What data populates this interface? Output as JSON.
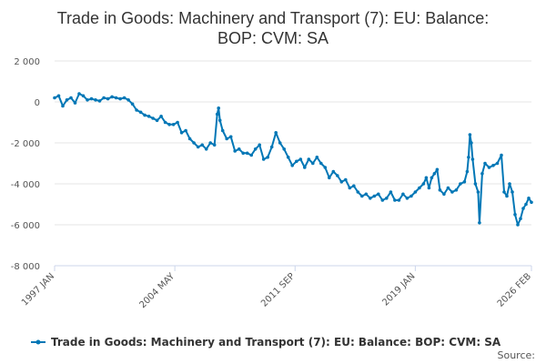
{
  "chart_data": {
    "type": "line",
    "title_lines": [
      "Trade in Goods: Machinery and Transport (7): EU: Balance:",
      "BOP: CVM: SA"
    ],
    "x_tick_labels": [
      "1997 JAN",
      "2004 MAY",
      "2011 SEP",
      "2019 JAN",
      "2026 FEB"
    ],
    "x_tick_positions": [
      0,
      88,
      176,
      264,
      349
    ],
    "y_ticks": [
      2000,
      0,
      -2000,
      -4000,
      -6000,
      -8000
    ],
    "y_tick_labels": [
      "2 000",
      "0",
      "-2 000",
      "-4 000",
      "-6 000",
      "-8 000"
    ],
    "ylim": [
      -8000,
      2000
    ],
    "xlim": [
      0,
      349
    ],
    "x_unit": "months since 1997 JAN",
    "grid": true,
    "legend": {
      "position": "bottom",
      "label": "Trade in Goods: Machinery and Transport (7): EU: Balance: BOP: CVM: SA"
    },
    "series_color": "#0077b6",
    "credit": "Source:",
    "series": [
      {
        "name": "Trade in Goods: Machinery and Transport (7): EU: Balance: BOP: CVM: SA",
        "points": [
          [
            0,
            200
          ],
          [
            3,
            300
          ],
          [
            6,
            -200
          ],
          [
            9,
            100
          ],
          [
            12,
            200
          ],
          [
            15,
            -50
          ],
          [
            18,
            400
          ],
          [
            21,
            300
          ],
          [
            24,
            100
          ],
          [
            27,
            150
          ],
          [
            30,
            100
          ],
          [
            33,
            50
          ],
          [
            36,
            200
          ],
          [
            39,
            150
          ],
          [
            42,
            250
          ],
          [
            45,
            200
          ],
          [
            48,
            150
          ],
          [
            51,
            200
          ],
          [
            54,
            100
          ],
          [
            57,
            -100
          ],
          [
            60,
            -400
          ],
          [
            63,
            -500
          ],
          [
            66,
            -650
          ],
          [
            69,
            -700
          ],
          [
            72,
            -800
          ],
          [
            75,
            -900
          ],
          [
            78,
            -700
          ],
          [
            81,
            -1000
          ],
          [
            84,
            -1100
          ],
          [
            87,
            -1100
          ],
          [
            90,
            -1000
          ],
          [
            93,
            -1500
          ],
          [
            96,
            -1400
          ],
          [
            99,
            -1800
          ],
          [
            102,
            -2000
          ],
          [
            105,
            -2200
          ],
          [
            108,
            -2100
          ],
          [
            111,
            -2300
          ],
          [
            114,
            -2000
          ],
          [
            117,
            -2100
          ],
          [
            119,
            -600
          ],
          [
            120,
            -300
          ],
          [
            121,
            -900
          ],
          [
            123,
            -1400
          ],
          [
            126,
            -1800
          ],
          [
            129,
            -1700
          ],
          [
            132,
            -2400
          ],
          [
            135,
            -2300
          ],
          [
            138,
            -2500
          ],
          [
            141,
            -2500
          ],
          [
            144,
            -2600
          ],
          [
            147,
            -2300
          ],
          [
            150,
            -2100
          ],
          [
            153,
            -2800
          ],
          [
            156,
            -2700
          ],
          [
            159,
            -2200
          ],
          [
            162,
            -1500
          ],
          [
            165,
            -2000
          ],
          [
            168,
            -2300
          ],
          [
            171,
            -2700
          ],
          [
            174,
            -3100
          ],
          [
            177,
            -2900
          ],
          [
            180,
            -2800
          ],
          [
            183,
            -3200
          ],
          [
            186,
            -2800
          ],
          [
            189,
            -3000
          ],
          [
            192,
            -2700
          ],
          [
            195,
            -3000
          ],
          [
            198,
            -3200
          ],
          [
            201,
            -3700
          ],
          [
            204,
            -3400
          ],
          [
            207,
            -3600
          ],
          [
            210,
            -3900
          ],
          [
            213,
            -3800
          ],
          [
            216,
            -4200
          ],
          [
            219,
            -4100
          ],
          [
            222,
            -4400
          ],
          [
            225,
            -4600
          ],
          [
            228,
            -4500
          ],
          [
            231,
            -4700
          ],
          [
            234,
            -4600
          ],
          [
            237,
            -4500
          ],
          [
            240,
            -4800
          ],
          [
            243,
            -4700
          ],
          [
            246,
            -4400
          ],
          [
            249,
            -4800
          ],
          [
            252,
            -4800
          ],
          [
            255,
            -4500
          ],
          [
            258,
            -4700
          ],
          [
            261,
            -4600
          ],
          [
            264,
            -4400
          ],
          [
            267,
            -4200
          ],
          [
            270,
            -4000
          ],
          [
            272,
            -3700
          ],
          [
            274,
            -4200
          ],
          [
            276,
            -3700
          ],
          [
            278,
            -3500
          ],
          [
            280,
            -3300
          ],
          [
            282,
            -4300
          ],
          [
            285,
            -4500
          ],
          [
            288,
            -4200
          ],
          [
            291,
            -4400
          ],
          [
            294,
            -4300
          ],
          [
            297,
            -4000
          ],
          [
            300,
            -3900
          ],
          [
            302,
            -3400
          ],
          [
            303,
            -2700
          ],
          [
            304,
            -1600
          ],
          [
            305,
            -2000
          ],
          [
            306,
            -2800
          ],
          [
            308,
            -4000
          ],
          [
            310,
            -4400
          ],
          [
            311,
            -5900
          ],
          [
            313,
            -3500
          ],
          [
            315,
            -3000
          ],
          [
            318,
            -3200
          ],
          [
            321,
            -3100
          ],
          [
            324,
            -3000
          ],
          [
            327,
            -2600
          ],
          [
            329,
            -4400
          ],
          [
            331,
            -4600
          ],
          [
            333,
            -4000
          ],
          [
            335,
            -4400
          ],
          [
            337,
            -5500
          ],
          [
            339,
            -6000
          ],
          [
            341,
            -5700
          ],
          [
            343,
            -5200
          ],
          [
            345,
            -5000
          ],
          [
            347,
            -4700
          ],
          [
            349,
            -4900
          ]
        ]
      }
    ]
  }
}
